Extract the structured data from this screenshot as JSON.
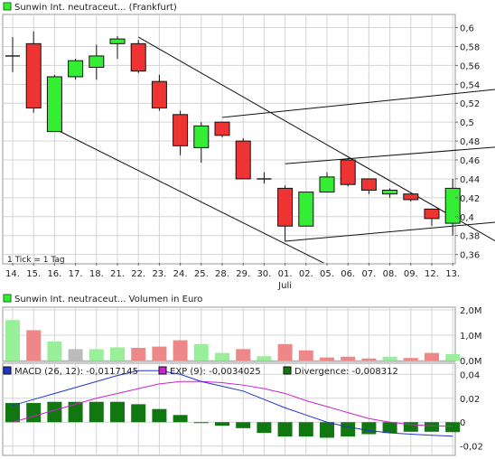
{
  "colors": {
    "up": "#33ee33",
    "down": "#ee3333",
    "doji": "#222222",
    "grid": "#d4d4d4",
    "vol_up": "#99ee99",
    "vol_down": "#ee8888",
    "vol_neutral": "#bbbbbb",
    "macd": "#2233cc",
    "exp": "#cc22cc",
    "divergence": "#117711"
  },
  "chart_data": [
    {
      "type": "candlestick",
      "title": "Sunwin Int. neutraceut... (Frankfurt)",
      "legend_marker": "green-square",
      "footnote": "1 Tick = 1 Tag",
      "month_label": "Juli",
      "month_label_at": "01.",
      "categories": [
        "14.",
        "15.",
        "16.",
        "17.",
        "18.",
        "21.",
        "22.",
        "23.",
        "24.",
        "25.",
        "28.",
        "29.",
        "30.",
        "01.",
        "02.",
        "05.",
        "06.",
        "07.",
        "08.",
        "09.",
        "12.",
        "13."
      ],
      "y_ticks": [
        "0,6",
        "0,58",
        "0,56",
        "0,54",
        "0,52",
        "0,5",
        "0,48",
        "0,46",
        "0,44",
        "0,42",
        "0,4",
        "0,38",
        "0,36"
      ],
      "ylim": [
        0.352,
        0.612
      ],
      "grid": true,
      "candles": [
        {
          "open": 0.57,
          "close": 0.57,
          "high": 0.59,
          "low": 0.553
        },
        {
          "open": 0.583,
          "close": 0.515,
          "high": 0.596,
          "low": 0.51
        },
        {
          "open": 0.49,
          "close": 0.548,
          "high": 0.55,
          "low": 0.49
        },
        {
          "open": 0.548,
          "close": 0.565,
          "high": 0.567,
          "low": 0.545
        },
        {
          "open": 0.558,
          "close": 0.57,
          "high": 0.582,
          "low": 0.545
        },
        {
          "open": 0.583,
          "close": 0.588,
          "high": 0.591,
          "low": 0.567
        },
        {
          "open": 0.583,
          "close": 0.554,
          "high": 0.587,
          "low": 0.552
        },
        {
          "open": 0.543,
          "close": 0.515,
          "high": 0.55,
          "low": 0.512
        },
        {
          "open": 0.508,
          "close": 0.475,
          "high": 0.512,
          "low": 0.465
        },
        {
          "open": 0.473,
          "close": 0.496,
          "high": 0.5,
          "low": 0.457
        },
        {
          "open": 0.5,
          "close": 0.486,
          "high": 0.5,
          "low": 0.484
        },
        {
          "open": 0.48,
          "close": 0.44,
          "high": 0.483,
          "low": 0.44
        },
        {
          "open": 0.44,
          "close": 0.44,
          "high": 0.447,
          "low": 0.435
        },
        {
          "open": 0.43,
          "close": 0.39,
          "high": 0.433,
          "low": 0.374
        },
        {
          "open": 0.39,
          "close": 0.426,
          "high": 0.426,
          "low": 0.39
        },
        {
          "open": 0.426,
          "close": 0.442,
          "high": 0.447,
          "low": 0.426
        },
        {
          "open": 0.46,
          "close": 0.434,
          "high": 0.462,
          "low": 0.432
        },
        {
          "open": 0.44,
          "close": 0.428,
          "high": 0.44,
          "low": 0.424
        },
        {
          "open": 0.424,
          "close": 0.428,
          "high": 0.43,
          "low": 0.42
        },
        {
          "open": 0.424,
          "close": 0.418,
          "high": 0.424,
          "low": 0.416
        },
        {
          "open": 0.408,
          "close": 0.398,
          "high": 0.408,
          "low": 0.39
        },
        {
          "open": 0.393,
          "close": 0.43,
          "high": 0.44,
          "low": 0.38
        }
      ],
      "trend_lines": [
        {
          "from": [
            "22.",
            0.59
          ],
          "to": [
            "13.",
            0.4
          ]
        },
        {
          "from": [
            "16.",
            0.493
          ],
          "to": [
            "09.",
            0.305
          ]
        },
        {
          "from": [
            "28.",
            0.505
          ],
          "to": [
            "13.",
            0.53
          ]
        },
        {
          "from": [
            "01.",
            0.374
          ],
          "to": [
            "13.",
            0.39
          ]
        },
        {
          "from": [
            "01.",
            0.456
          ],
          "to": [
            "13.",
            0.47
          ]
        }
      ]
    },
    {
      "type": "bar",
      "title": "Sunwin Int. neutraceut... Volumen in Euro",
      "legend_marker": "green-square",
      "y_ticks": [
        "2,0M",
        "1,0M",
        "0,0M"
      ],
      "ylim": [
        0,
        2.0
      ],
      "unit": "M Euro",
      "values": [
        1.6,
        1.2,
        0.75,
        0.45,
        0.45,
        0.52,
        0.5,
        0.55,
        0.8,
        0.65,
        0.3,
        0.45,
        0.17,
        0.65,
        0.4,
        0.12,
        0.15,
        0.08,
        0.15,
        0.1,
        0.3,
        0.25
      ],
      "directions": [
        "up",
        "down",
        "up",
        "neutral",
        "up",
        "up",
        "down",
        "down",
        "down",
        "up",
        "up",
        "down",
        "up",
        "down",
        "down",
        "down",
        "down",
        "down",
        "up",
        "down",
        "down",
        "up"
      ]
    },
    {
      "type": "macd",
      "legend": [
        {
          "label": "MACD (26, 12): -0,0117145",
          "marker": "square"
        },
        {
          "label": "EXP (9): -0,0034025",
          "marker": "square"
        },
        {
          "label": "Divergence: -0,008312",
          "marker": "square"
        }
      ],
      "y_ticks": [
        "0,04",
        "0,02",
        "0",
        "-0,02"
      ],
      "ylim": [
        -0.027,
        0.047
      ],
      "macd": [
        0.014,
        0.019,
        0.024,
        0.029,
        0.034,
        0.039,
        0.043,
        0.043,
        0.04,
        0.034,
        0.03,
        0.026,
        0.019,
        0.012,
        0.006,
        0.0,
        -0.004,
        -0.007,
        -0.009,
        -0.01,
        -0.011,
        -0.0117
      ],
      "exp": [
        0.0,
        0.005,
        0.01,
        0.015,
        0.02,
        0.024,
        0.028,
        0.032,
        0.034,
        0.034,
        0.033,
        0.031,
        0.028,
        0.024,
        0.018,
        0.013,
        0.008,
        0.003,
        0.0,
        -0.002,
        -0.003,
        -0.0034
      ],
      "divergence": [
        0.016,
        0.016,
        0.017,
        0.017,
        0.017,
        0.017,
        0.015,
        0.011,
        0.006,
        0.0,
        -0.003,
        -0.005,
        -0.009,
        -0.012,
        -0.012,
        -0.013,
        -0.012,
        -0.01,
        -0.009,
        -0.008,
        -0.008,
        -0.0083
      ]
    }
  ]
}
